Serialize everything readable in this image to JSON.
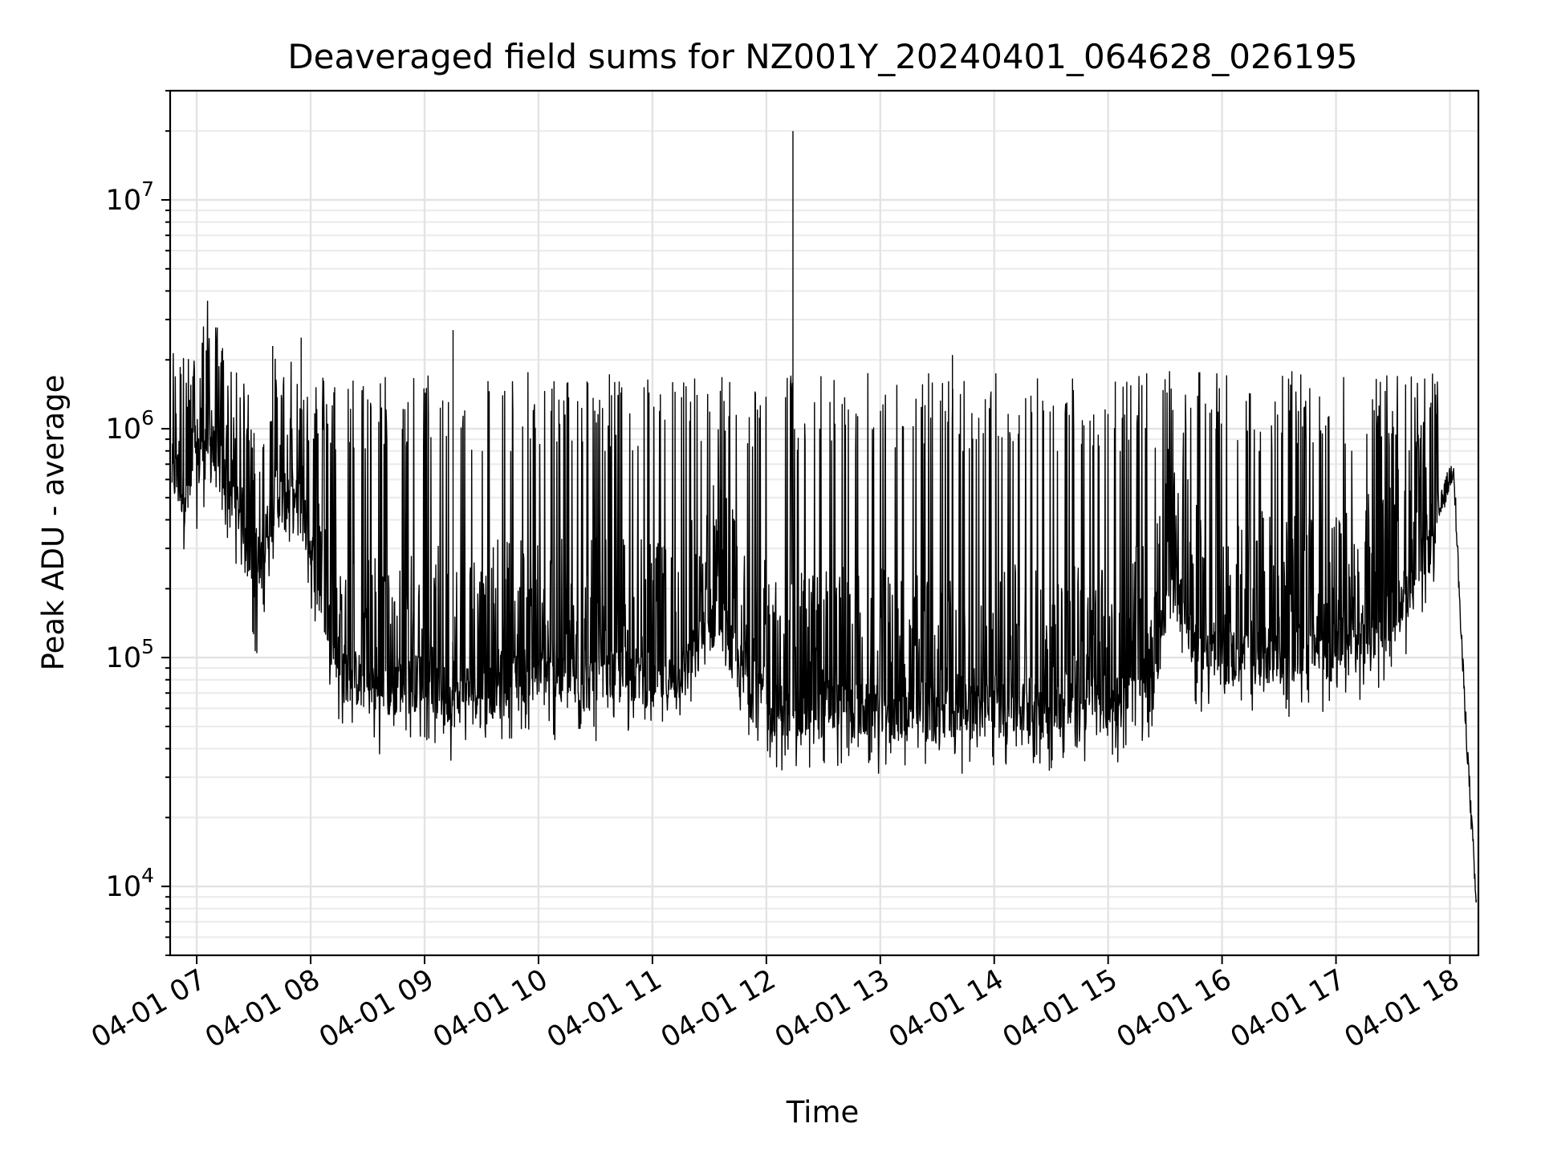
{
  "chart_data": {
    "type": "line",
    "title": "Deaveraged field sums for NZ001Y_20240401_064628_026195",
    "xlabel": "Time",
    "ylabel": "Peak ADU - average",
    "yscale": "log",
    "grid": true,
    "xlim": [
      "2024-04-01 06:46",
      "2024-04-01 18:15"
    ],
    "ylim": [
      5000,
      30000000
    ],
    "x_tick_labels": [
      "04-01 07",
      "04-01 08",
      "04-01 09",
      "04-01 10",
      "04-01 11",
      "04-01 12",
      "04-01 13",
      "04-01 14",
      "04-01 15",
      "04-01 16",
      "04-01 17",
      "04-01 18"
    ],
    "x_tick_values": [
      "2024-04-01 07:00",
      "2024-04-01 08:00",
      "2024-04-01 09:00",
      "2024-04-01 10:00",
      "2024-04-01 11:00",
      "2024-04-01 12:00",
      "2024-04-01 13:00",
      "2024-04-01 14:00",
      "2024-04-01 15:00",
      "2024-04-01 16:00",
      "2024-04-01 17:00",
      "2024-04-01 18:00"
    ],
    "y_ticks": [
      {
        "value": 10000,
        "base": "10",
        "exp": "4"
      },
      {
        "value": 100000,
        "base": "10",
        "exp": "5"
      },
      {
        "value": 1000000,
        "base": "10",
        "exp": "6"
      },
      {
        "value": 10000000,
        "base": "10",
        "exp": "7"
      }
    ],
    "line_color": "#000000",
    "series": [
      {
        "x": [
          "2024-04-01 06:47",
          "2024-04-01 06:55",
          "2024-04-01 07:05",
          "2024-04-01 07:15",
          "2024-04-01 07:25",
          "2024-04-01 07:30",
          "2024-04-01 07:40",
          "2024-04-01 07:55",
          "2024-04-01 08:05",
          "2024-04-01 08:15",
          "2024-04-01 08:25",
          "2024-04-01 08:35",
          "2024-04-01 08:50",
          "2024-04-01 09:00",
          "2024-04-01 09:15",
          "2024-04-01 09:20",
          "2024-04-01 09:35",
          "2024-04-01 09:50",
          "2024-04-01 10:05",
          "2024-04-01 10:20",
          "2024-04-01 10:35",
          "2024-04-01 10:50",
          "2024-04-01 11:05",
          "2024-04-01 11:20",
          "2024-04-01 11:35",
          "2024-04-01 11:45",
          "2024-04-01 11:55",
          "2024-04-01 12:05",
          "2024-04-01 12:15",
          "2024-04-01 12:30",
          "2024-04-01 12:50",
          "2024-04-01 13:10",
          "2024-04-01 13:30",
          "2024-04-01 13:50",
          "2024-04-01 14:10",
          "2024-04-01 14:30",
          "2024-04-01 14:50",
          "2024-04-01 15:10",
          "2024-04-01 15:25",
          "2024-04-01 15:35",
          "2024-04-01 15:45",
          "2024-04-01 16:00",
          "2024-04-01 16:15",
          "2024-04-01 16:30",
          "2024-04-01 16:45",
          "2024-04-01 17:00",
          "2024-04-01 17:15",
          "2024-04-01 17:30",
          "2024-04-01 17:45",
          "2024-04-01 17:55",
          "2024-04-01 18:02",
          "2024-04-01 18:06",
          "2024-04-01 18:10",
          "2024-04-01 18:14"
        ],
        "y": [
          650000,
          500000,
          900000,
          600000,
          400000,
          150000,
          500000,
          450000,
          200000,
          90000,
          80000,
          70000,
          75000,
          80000,
          65000,
          70000,
          75000,
          85000,
          80000,
          75000,
          80000,
          85000,
          75000,
          95000,
          160000,
          90000,
          65000,
          60000,
          55000,
          60000,
          58000,
          57000,
          56000,
          58000,
          60000,
          58000,
          62000,
          65000,
          90000,
          250000,
          110000,
          100000,
          105000,
          98000,
          110000,
          100000,
          120000,
          150000,
          250000,
          450000,
          700000,
          120000,
          30000,
          8000
        ],
        "spikes": [
          {
            "x": "2024-04-01 07:05",
            "y": 2200000
          },
          {
            "x": "2024-04-01 07:40",
            "y": 2300000
          },
          {
            "x": "2024-04-01 07:55",
            "y": 2500000
          },
          {
            "x": "2024-04-01 09:15",
            "y": 2700000
          },
          {
            "x": "2024-04-01 12:14",
            "y": 20000000
          },
          {
            "x": "2024-04-01 13:38",
            "y": 2100000
          },
          {
            "x": "2024-04-01 17:50",
            "y": 1300000
          }
        ]
      }
    ]
  }
}
